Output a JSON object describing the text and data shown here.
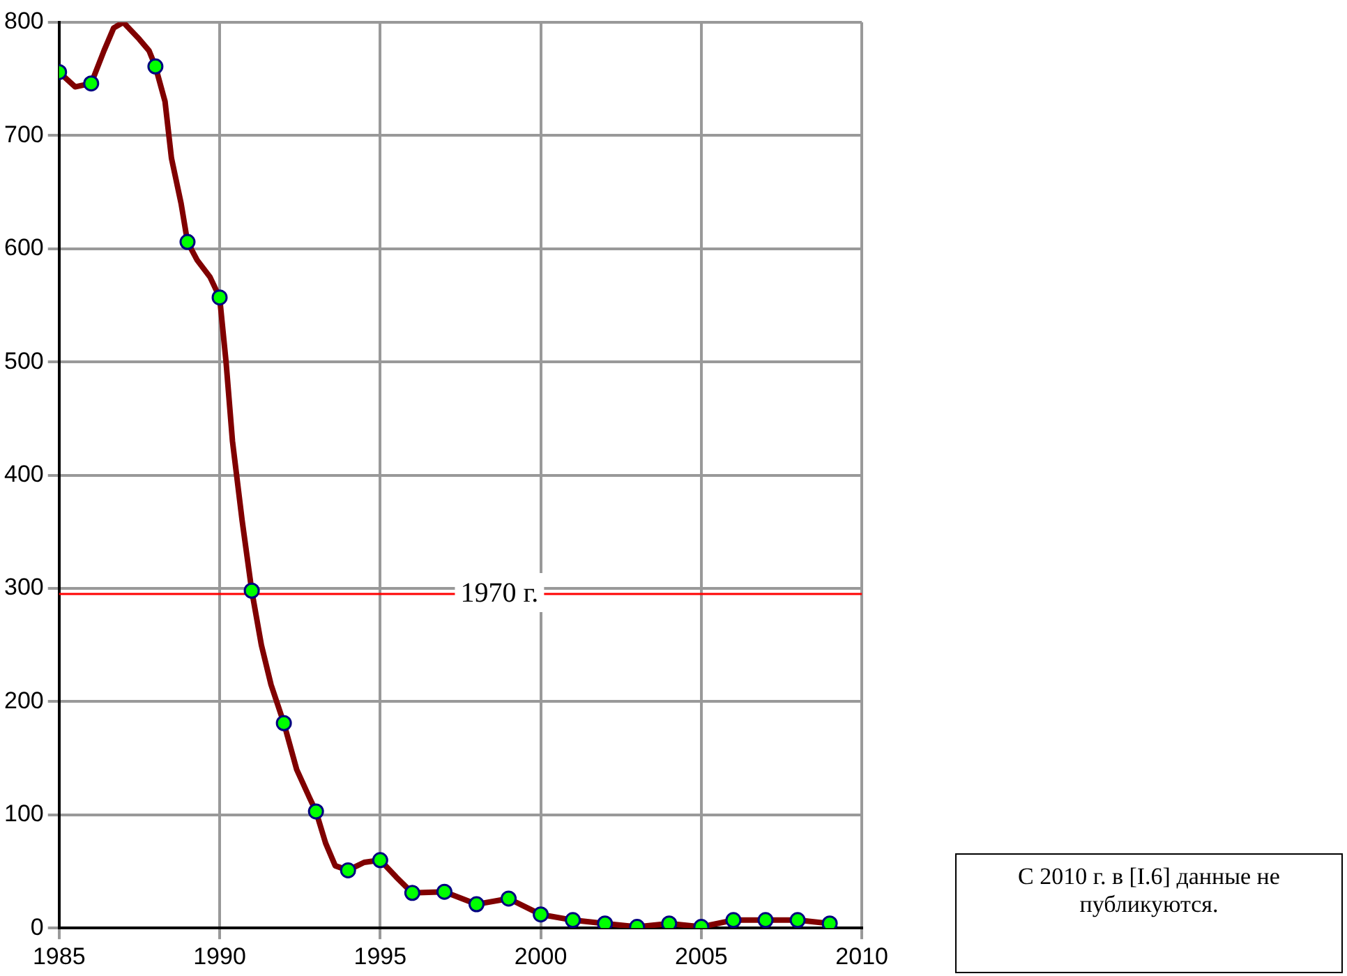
{
  "chart_data": {
    "type": "line",
    "series": [
      {
        "type": "line",
        "color": "#800000",
        "marker": "none",
        "x": [
          1985,
          1985.5,
          1986,
          1986.4,
          1986.7,
          1987,
          1987.5,
          1987.8,
          1988,
          1988.3,
          1988.5,
          1988.8,
          1989,
          1989.3,
          1989.7,
          1990,
          1990.2,
          1990.4,
          1990.7,
          1991,
          1991.3,
          1991.6,
          1992,
          1992.4,
          1992.8,
          1993,
          1993.3,
          1993.6,
          1994,
          1994.5,
          1995,
          1995.5,
          1996,
          1997,
          1998,
          1999,
          2000,
          2001,
          2002,
          2003,
          2004,
          2005,
          2006,
          2007,
          2008,
          2009
        ],
        "values": [
          756,
          743,
          746,
          775,
          795,
          800,
          785,
          775,
          761,
          730,
          680,
          640,
          606,
          590,
          575,
          557,
          500,
          430,
          360,
          298,
          250,
          215,
          181,
          140,
          115,
          103,
          75,
          55,
          51,
          58,
          60,
          45,
          31,
          32,
          21,
          26,
          12,
          7,
          4,
          1,
          4,
          1,
          7,
          7,
          7,
          4
        ]
      },
      {
        "type": "scatter",
        "color": "#00ff00",
        "marker": "circle",
        "x": [
          1985,
          1986,
          1988,
          1989,
          1990,
          1991,
          1992,
          1993,
          1994,
          1995,
          1996,
          1997,
          1998,
          1999,
          2000,
          2001,
          2002,
          2003,
          2004,
          2005,
          2006,
          2007,
          2008,
          2009
        ],
        "values": [
          756,
          746,
          761,
          606,
          557,
          298,
          181,
          103,
          51,
          60,
          31,
          32,
          21,
          26,
          12,
          7,
          4,
          1,
          4,
          1,
          7,
          7,
          7,
          4
        ]
      }
    ],
    "xlim": [
      1985,
      2010
    ],
    "xticks": [
      1985,
      1990,
      1995,
      2000,
      2005,
      2010
    ],
    "ylim": [
      0,
      800
    ],
    "yticks": [
      0,
      100,
      200,
      300,
      400,
      500,
      600,
      700,
      800
    ],
    "grid": true,
    "legend": false,
    "ref_lines": [
      {
        "axis": "y",
        "value": 295,
        "label": "1970 г.",
        "color": "#ff0000"
      }
    ],
    "annotations": [
      "С 2010 г. в [I.6] данные не публикуются."
    ]
  }
}
